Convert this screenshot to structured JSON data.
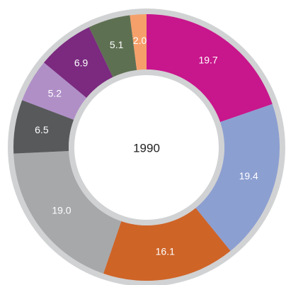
{
  "chart_data": {
    "type": "pie",
    "title": "1990",
    "values": [
      19.7,
      19.4,
      16.1,
      19.0,
      6.5,
      5.2,
      6.9,
      5.1,
      2.0
    ],
    "value_labels": [
      "19.7",
      "19.4",
      "16.1",
      "19.0",
      "6.5",
      "5.2",
      "6.9",
      "5.1",
      "2.0"
    ],
    "colors": [
      "#c8168c",
      "#8c9fd1",
      "#cf6427",
      "#a7a8aa",
      "#58595b",
      "#b08fc7",
      "#7b2a80",
      "#5e7052",
      "#f5a06a"
    ]
  }
}
